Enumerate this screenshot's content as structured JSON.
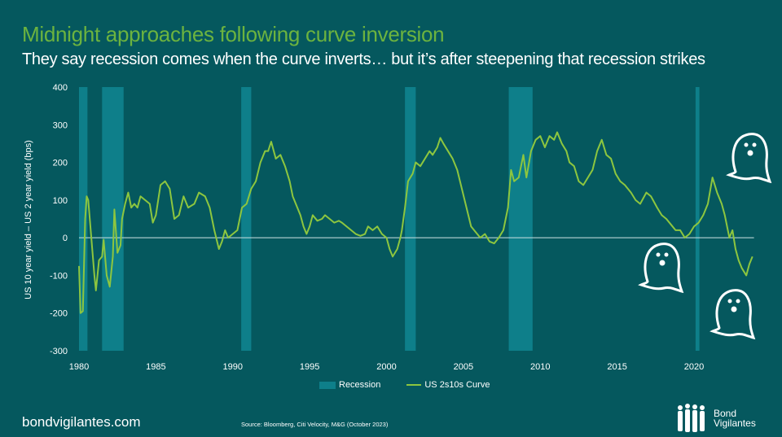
{
  "header": {
    "title": "Midnight approaches following curve inversion",
    "subtitle": "They say recession comes when the curve inverts… but it’s after steepening that recession strikes"
  },
  "footer": {
    "site": "bondvigilantes.com",
    "source": "Source: Bloomberg, Citi Velocity, M&G (October 2023)",
    "logo_line1": "Bond",
    "logo_line2": "Vigilantes"
  },
  "colors": {
    "background": "#05585e",
    "recession": "#0e7f8a",
    "curve": "#8dc63f",
    "title": "#6cb33f"
  },
  "chart_data": {
    "type": "line",
    "title": "Midnight approaches following curve inversion",
    "xlabel": "",
    "ylabel": "US 10 year yield – US 2 year yield (bps)",
    "xlim": [
      1980,
      2024.5
    ],
    "ylim": [
      -300,
      400
    ],
    "xticks": [
      1980,
      1985,
      1990,
      1995,
      2000,
      2005,
      2010,
      2015,
      2020
    ],
    "yticks": [
      400,
      300,
      200,
      100,
      0,
      -100,
      -200,
      -300
    ],
    "legend": [
      "Recession",
      "US 2s10s Curve"
    ],
    "legend_position": "bottom",
    "recessions": [
      [
        1980.0,
        1980.55
      ],
      [
        1981.5,
        1982.9
      ],
      [
        1990.55,
        1991.2
      ],
      [
        2001.2,
        2001.9
      ],
      [
        2007.95,
        2009.5
      ],
      [
        2020.1,
        2020.35
      ]
    ],
    "series": [
      {
        "name": "US 2s10s Curve",
        "x": [
          1980.0,
          1980.1,
          1980.25,
          1980.4,
          1980.5,
          1980.6,
          1980.8,
          1981.0,
          1981.1,
          1981.3,
          1981.5,
          1981.6,
          1981.8,
          1982.0,
          1982.2,
          1982.3,
          1982.5,
          1982.7,
          1982.8,
          1983.0,
          1983.2,
          1983.4,
          1983.6,
          1983.8,
          1984.0,
          1984.3,
          1984.6,
          1984.8,
          1985.0,
          1985.3,
          1985.6,
          1985.9,
          1986.2,
          1986.5,
          1986.8,
          1987.1,
          1987.5,
          1987.8,
          1988.2,
          1988.5,
          1988.8,
          1989.1,
          1989.3,
          1989.5,
          1989.7,
          1990.0,
          1990.3,
          1990.6,
          1990.9,
          1991.2,
          1991.5,
          1991.8,
          1992.1,
          1992.3,
          1992.5,
          1992.8,
          1993.1,
          1993.4,
          1993.7,
          1993.9,
          1994.2,
          1994.4,
          1994.6,
          1994.8,
          1995.0,
          1995.2,
          1995.5,
          1995.8,
          1996.0,
          1996.3,
          1996.6,
          1996.9,
          1997.1,
          1997.4,
          1997.7,
          1998.0,
          1998.3,
          1998.6,
          1998.8,
          1999.1,
          1999.4,
          1999.7,
          2000.0,
          2000.2,
          2000.4,
          2000.7,
          2000.9,
          2001.0,
          2001.2,
          2001.4,
          2001.7,
          2001.9,
          2002.2,
          2002.5,
          2002.8,
          2003.0,
          2003.3,
          2003.5,
          2003.7,
          2004.0,
          2004.3,
          2004.6,
          2004.9,
          2005.2,
          2005.5,
          2005.8,
          2006.1,
          2006.4,
          2006.7,
          2007.0,
          2007.3,
          2007.6,
          2007.9,
          2008.1,
          2008.3,
          2008.6,
          2008.9,
          2009.1,
          2009.4,
          2009.7,
          2010.0,
          2010.3,
          2010.6,
          2010.9,
          2011.1,
          2011.4,
          2011.7,
          2011.9,
          2012.2,
          2012.5,
          2012.8,
          2013.1,
          2013.4,
          2013.7,
          2014.0,
          2014.3,
          2014.6,
          2014.9,
          2015.2,
          2015.5,
          2015.9,
          2016.2,
          2016.5,
          2016.9,
          2017.2,
          2017.6,
          2017.9,
          2018.2,
          2018.5,
          2018.8,
          2019.1,
          2019.4,
          2019.7,
          2020.0,
          2020.3,
          2020.6,
          2020.9,
          2021.2,
          2021.5,
          2021.8,
          2022.0,
          2022.3,
          2022.5,
          2022.7,
          2022.9,
          2023.1,
          2023.4,
          2023.6,
          2023.8
        ],
        "y": [
          -75,
          -200,
          -195,
          50,
          110,
          100,
          0,
          -100,
          -140,
          -60,
          -50,
          -5,
          -100,
          -130,
          -50,
          75,
          -40,
          -20,
          50,
          90,
          120,
          80,
          90,
          80,
          110,
          100,
          90,
          40,
          60,
          140,
          150,
          130,
          50,
          60,
          110,
          80,
          90,
          120,
          110,
          80,
          20,
          -30,
          -10,
          20,
          0,
          10,
          20,
          80,
          90,
          130,
          150,
          200,
          230,
          230,
          255,
          210,
          220,
          190,
          150,
          110,
          80,
          60,
          30,
          10,
          30,
          60,
          45,
          50,
          60,
          50,
          40,
          45,
          40,
          30,
          20,
          10,
          5,
          10,
          30,
          20,
          30,
          10,
          0,
          -30,
          -50,
          -30,
          0,
          20,
          80,
          150,
          170,
          200,
          190,
          210,
          230,
          220,
          240,
          265,
          250,
          230,
          210,
          180,
          130,
          80,
          30,
          15,
          0,
          10,
          -10,
          -15,
          0,
          20,
          80,
          180,
          150,
          160,
          220,
          160,
          230,
          260,
          270,
          240,
          270,
          260,
          280,
          250,
          230,
          200,
          190,
          150,
          140,
          160,
          180,
          230,
          260,
          220,
          210,
          170,
          150,
          140,
          120,
          100,
          90,
          120,
          110,
          80,
          60,
          50,
          35,
          20,
          20,
          0,
          10,
          30,
          40,
          60,
          90,
          160,
          120,
          90,
          60,
          0,
          20,
          -30,
          -60,
          -80,
          -100,
          -70,
          -50
        ]
      }
    ]
  }
}
